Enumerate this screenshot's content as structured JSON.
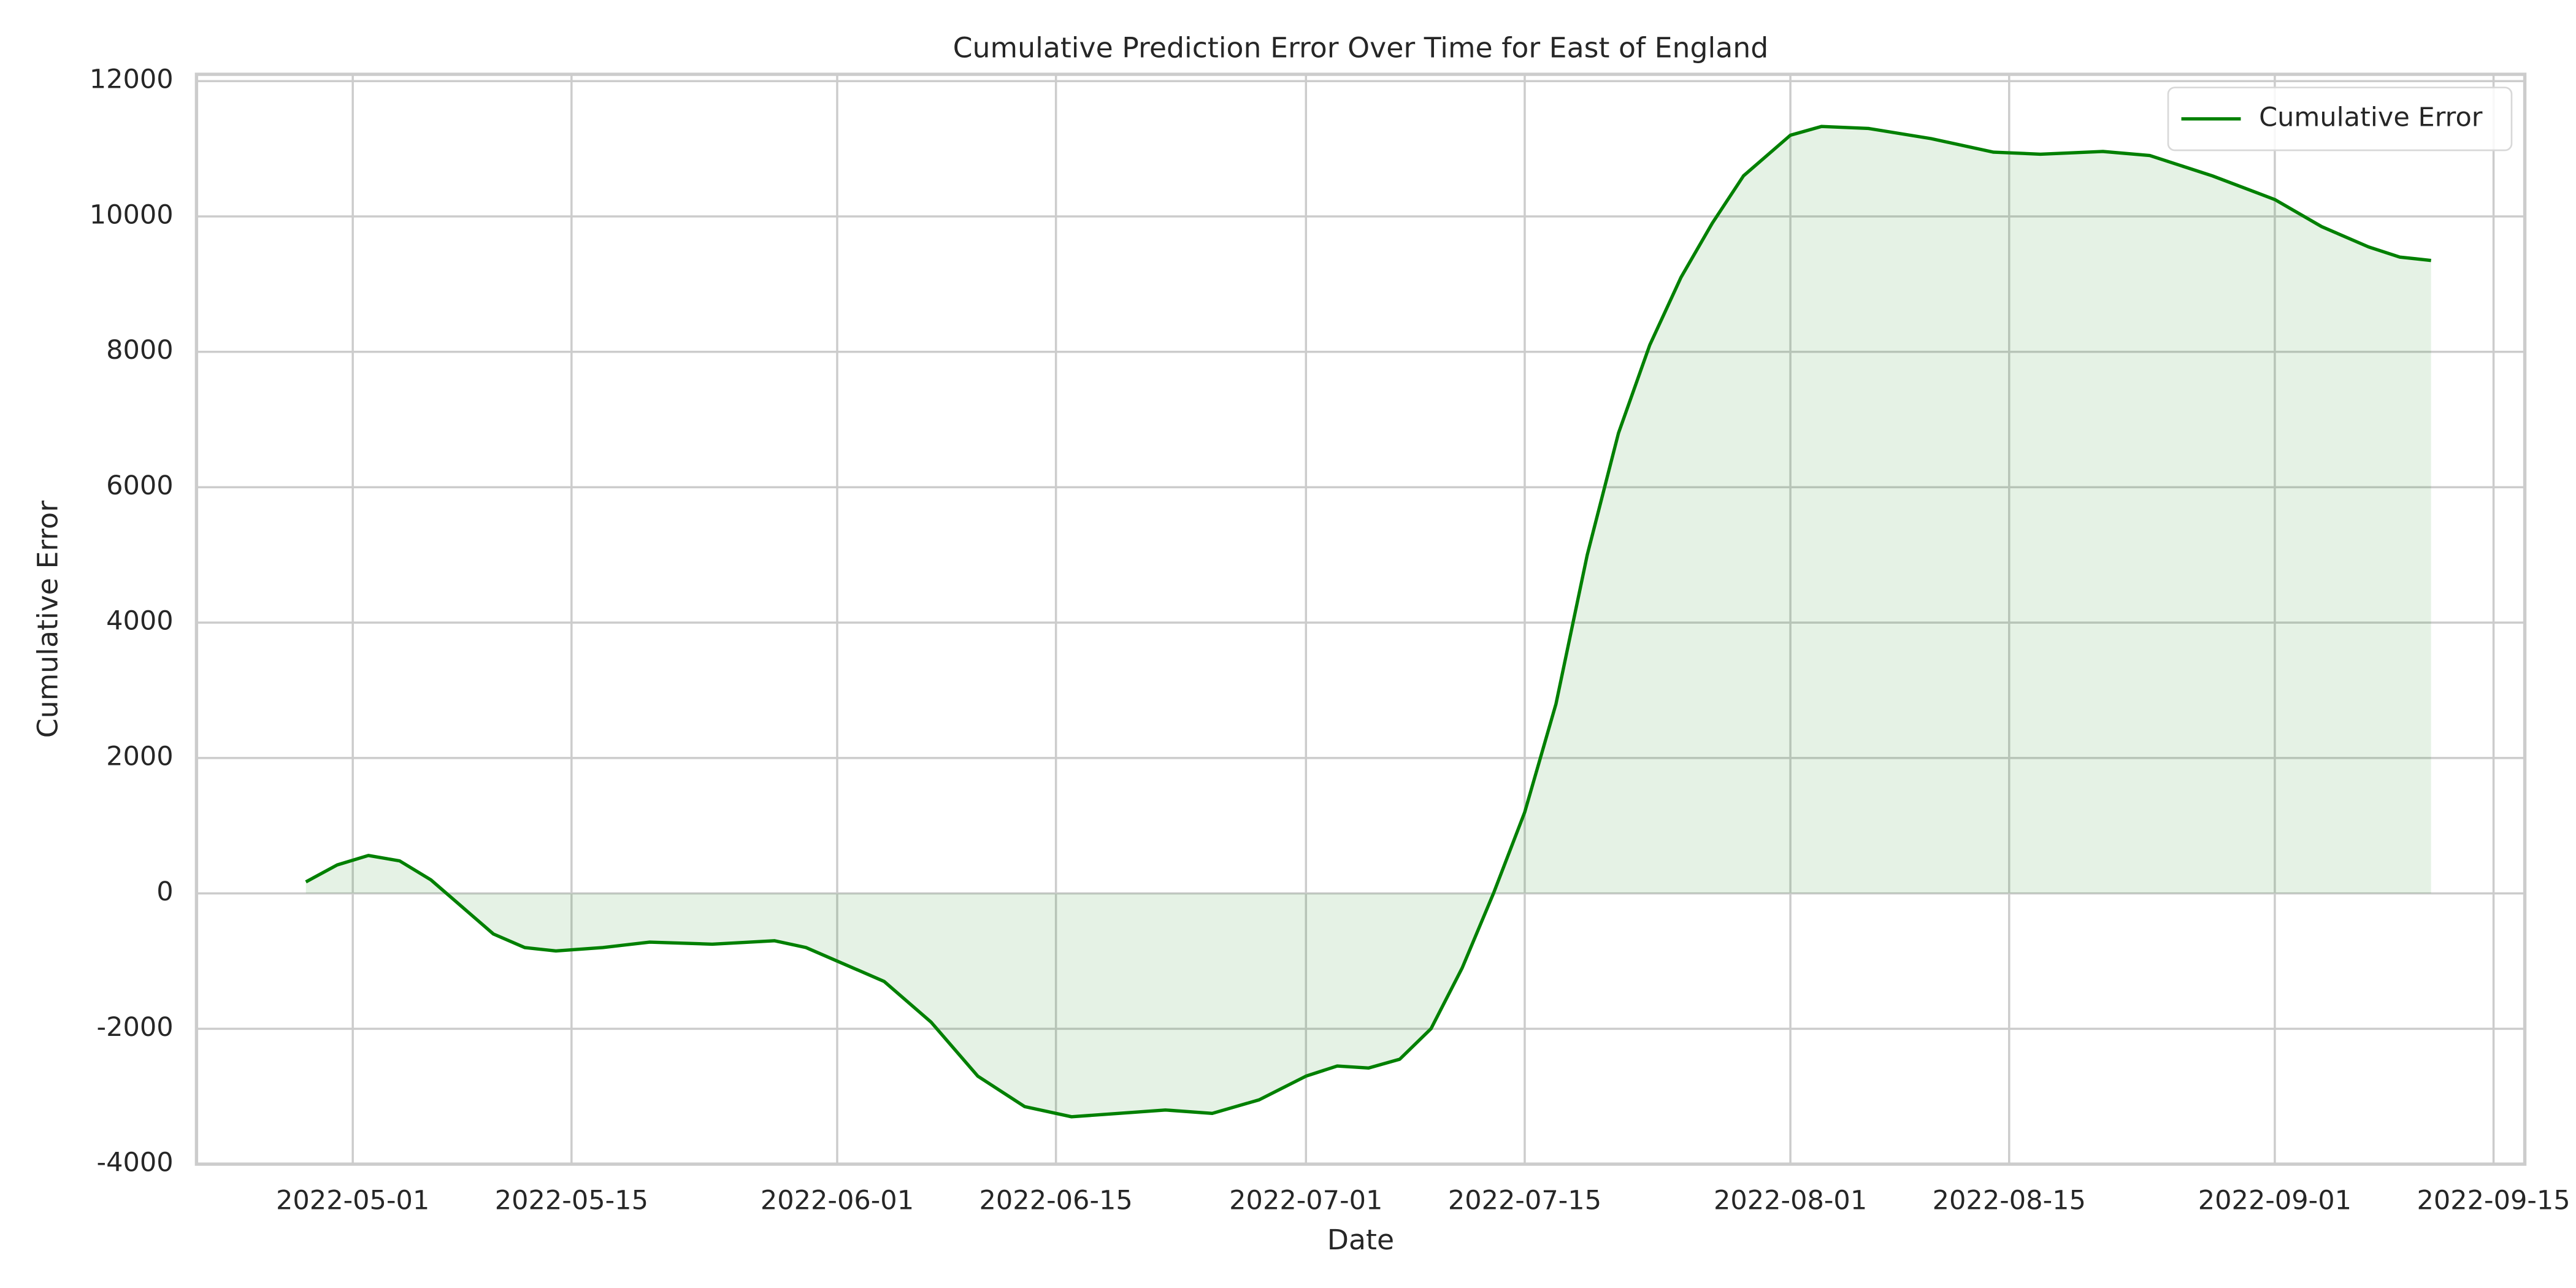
{
  "chart_data": {
    "type": "line",
    "title": "Cumulative Prediction Error Over Time for East of England",
    "x_label": "Date",
    "y_label": "Cumulative Error",
    "x": [
      "2022-04-28",
      "2022-04-30",
      "2022-05-02",
      "2022-05-04",
      "2022-05-06",
      "2022-05-08",
      "2022-05-10",
      "2022-05-12",
      "2022-05-14",
      "2022-05-17",
      "2022-05-20",
      "2022-05-24",
      "2022-05-28",
      "2022-05-30",
      "2022-06-01",
      "2022-06-04",
      "2022-06-07",
      "2022-06-10",
      "2022-06-13",
      "2022-06-16",
      "2022-06-19",
      "2022-06-22",
      "2022-06-25",
      "2022-06-28",
      "2022-07-01",
      "2022-07-03",
      "2022-07-05",
      "2022-07-07",
      "2022-07-09",
      "2022-07-11",
      "2022-07-13",
      "2022-07-15",
      "2022-07-17",
      "2022-07-19",
      "2022-07-21",
      "2022-07-23",
      "2022-07-25",
      "2022-07-27",
      "2022-07-29",
      "2022-08-01",
      "2022-08-03",
      "2022-08-06",
      "2022-08-10",
      "2022-08-14",
      "2022-08-17",
      "2022-08-21",
      "2022-08-24",
      "2022-08-28",
      "2022-09-01",
      "2022-09-04",
      "2022-09-07",
      "2022-09-09",
      "2022-09-11"
    ],
    "series": [
      {
        "name": "Cumulative Error",
        "color": "#008000",
        "fill_alpha": 0.1,
        "values": [
          170,
          420,
          560,
          480,
          200,
          -200,
          -600,
          -800,
          -850,
          -800,
          -720,
          -750,
          -700,
          -800,
          -1000,
          -1300,
          -1900,
          -2700,
          -3150,
          -3300,
          -3250,
          -3200,
          -3250,
          -3050,
          -2700,
          -2550,
          -2580,
          -2450,
          -2000,
          -1100,
          0,
          1200,
          2800,
          5000,
          6800,
          8100,
          9100,
          9900,
          10600,
          11200,
          11330,
          11300,
          11150,
          10950,
          10920,
          10960,
          10900,
          10600,
          10250,
          9850,
          9550,
          9400,
          9350
        ]
      }
    ],
    "xlim": [
      "2022-04-21",
      "2022-09-17"
    ],
    "xticks": [
      "2022-05-01",
      "2022-05-15",
      "2022-06-01",
      "2022-06-15",
      "2022-07-01",
      "2022-07-15",
      "2022-08-01",
      "2022-08-15",
      "2022-09-01",
      "2022-09-15"
    ],
    "ylim": [
      -4000,
      12100
    ],
    "yticks": [
      -4000,
      -2000,
      0,
      2000,
      4000,
      6000,
      8000,
      10000,
      12000
    ],
    "grid": true,
    "legend": "upper right"
  }
}
